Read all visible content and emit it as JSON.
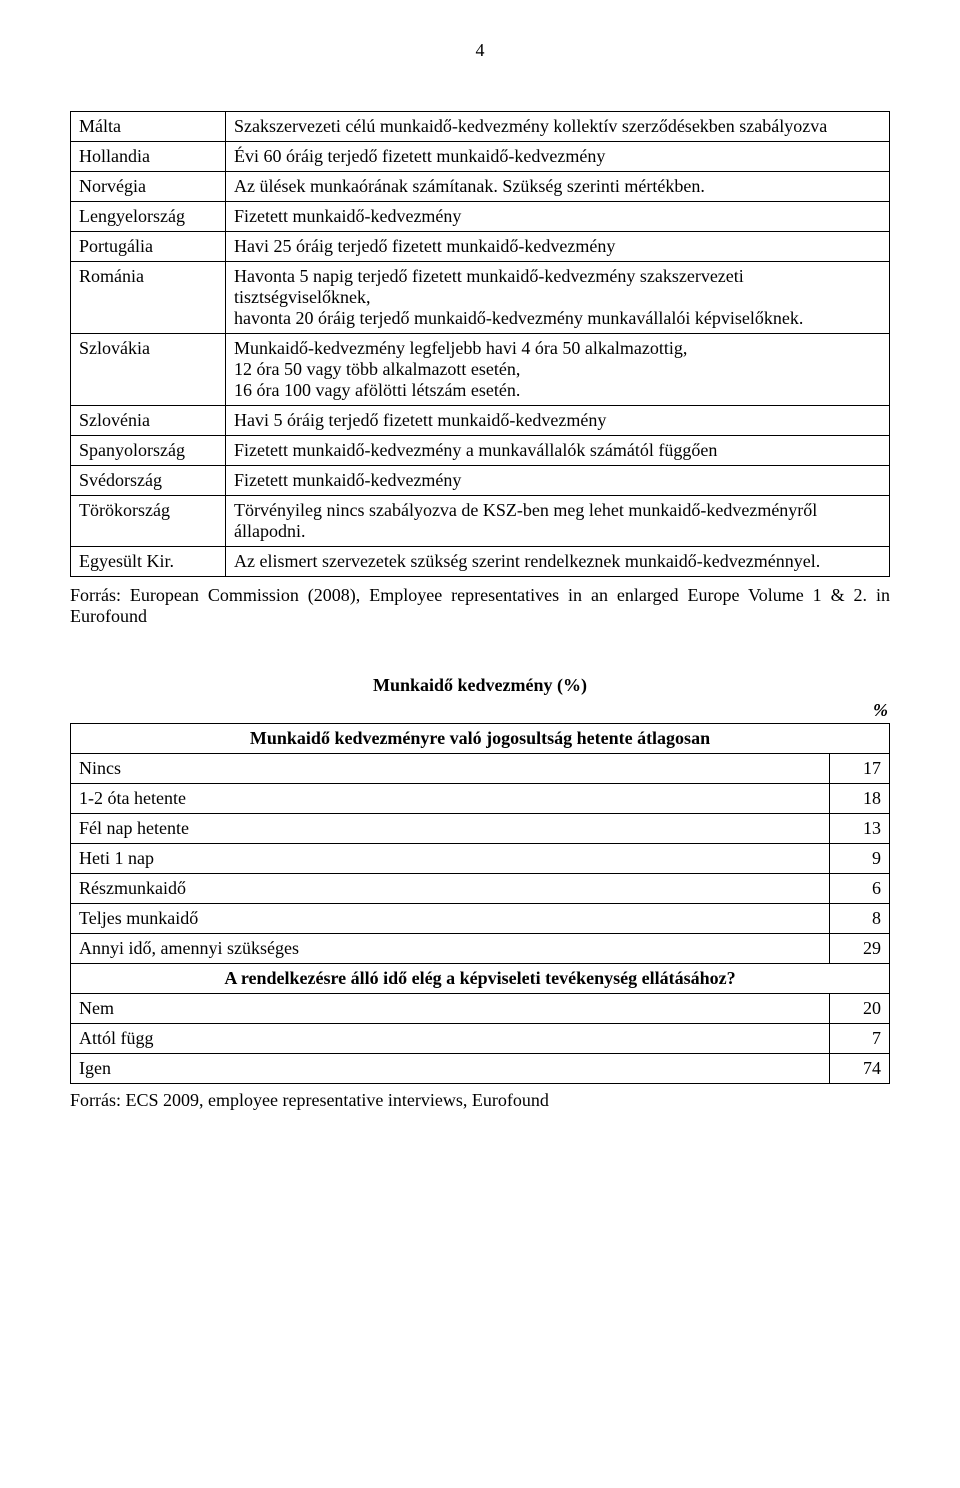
{
  "page_number": "4",
  "country_table": {
    "rows": [
      {
        "country": "Málta",
        "desc_html": "Szakszervezeti célú munkaidő-kedvezmény kollektív szerződésekben szabályozva",
        "desc_justify": true
      },
      {
        "country": "Hollandia",
        "desc_html": "Évi 60 óráig terjedő fizetett munkaidő-kedvezmény"
      },
      {
        "country": "Norvégia",
        "desc_html": "Az ülések munkaórának számítanak. Szükség szerinti mértékben."
      },
      {
        "country": "Lengyelország",
        "desc_html": "Fizetett munkaidő-kedvezmény"
      },
      {
        "country": "Portugália",
        "desc_html": "Havi 25 óráig terjedő fizetett munkaidő-kedvezmény"
      },
      {
        "country": "Románia",
        "desc_html": "Havonta 5 napig terjedő fizetett munkaidő-kedvezmény szakszervezeti tisztségviselőknek,<br>havonta 20 óráig terjedő munkaidő-kedvezmény munkavállalói képviselőknek."
      },
      {
        "country": "Szlovákia",
        "desc_html": "Munkaidő-kedvezmény legfeljebb havi 4 óra 50 alkalmazottig,<br>12 óra 50 vagy több alkalmazott esetén,<br>16 óra 100 vagy afölötti létszám esetén."
      },
      {
        "country": "Szlovénia",
        "desc_html": "Havi 5 óráig terjedő fizetett munkaidő-kedvezmény"
      },
      {
        "country": "Spanyolország",
        "desc_html": "Fizetett munkaidő-kedvezmény a munkavállalók számától függően"
      },
      {
        "country": "Svédország",
        "desc_html": "Fizetett munkaidő-kedvezmény"
      },
      {
        "country": "Törökország",
        "desc_html": "Törvényileg nincs szabályozva de KSZ-ben meg lehet munkaidő-kedvezményről állapodni.",
        "desc_justify": true
      },
      {
        "country": "Egyesült Kir.",
        "desc_html": "Az elismert szervezetek szükség szerint rendelkeznek munkaidő-kedvezménnyel.",
        "desc_justify": true
      }
    ]
  },
  "source1": "Forrás: European Commission (2008), Employee representatives in an enlarged Europe Volume 1 & 2. in Eurofound",
  "pct_section": {
    "title": "Munkaidő kedvezmény (%)",
    "percent_sign": "%",
    "header1": "Munkaidő kedvezményre való jogosultság hetente átlagosan",
    "rows1": [
      {
        "label": "Nincs",
        "value": "17"
      },
      {
        "label": "1-2 óta hetente",
        "value": "18"
      },
      {
        "label": "Fél nap hetente",
        "value": "13"
      },
      {
        "label": "Heti 1 nap",
        "value": "9"
      },
      {
        "label": "Részmunkaidő",
        "value": "6"
      },
      {
        "label": "Teljes munkaidő",
        "value": "8"
      },
      {
        "label": "Annyi idő, amennyi szükséges",
        "value": "29"
      }
    ],
    "header2": "A rendelkezésre álló idő elég a képviseleti tevékenység ellátásához?",
    "rows2": [
      {
        "label": "Nem",
        "value": "20"
      },
      {
        "label": "Attól függ",
        "value": "7"
      },
      {
        "label": "Igen",
        "value": "74"
      }
    ]
  },
  "source2": "Forrás: ECS 2009, employee representative interviews, Eurofound"
}
